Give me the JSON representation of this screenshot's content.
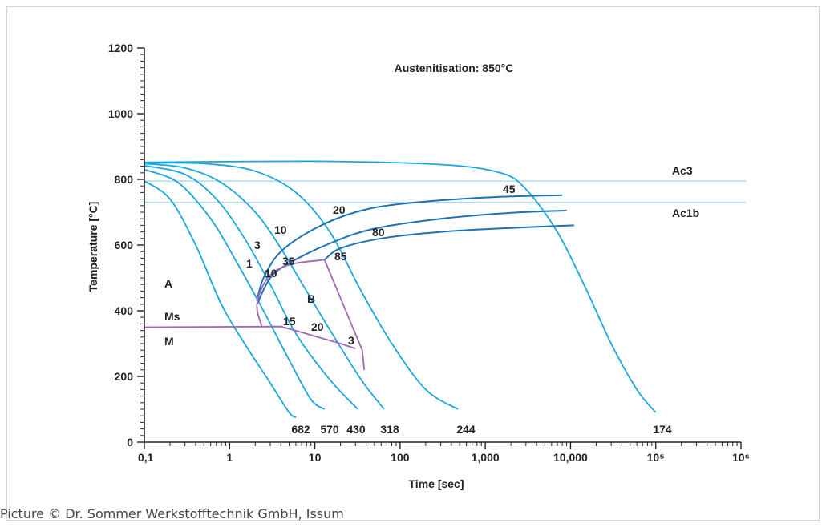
{
  "caption": "Picture © Dr. Sommer Werkstofftechnik GmbH, Issum",
  "chart_data": {
    "type": "line",
    "title": "Austenitisation: 850°C",
    "xlabel": "Time [sec]",
    "ylabel": "Temperature [°C]",
    "xscale": "log",
    "xlim": [
      0.1,
      1000000
    ],
    "ylim": [
      0,
      1200
    ],
    "x_tick_labels": [
      "0,1",
      "1",
      "10",
      "100",
      "1,000",
      "10,000",
      "10⁵",
      "10⁶"
    ],
    "x_tick_values": [
      0.1,
      1,
      10,
      100,
      1000,
      10000,
      100000,
      1000000
    ],
    "y_ticks": [
      0,
      200,
      400,
      600,
      800,
      1000,
      1200
    ],
    "colors": {
      "cooling": "#1aa7de",
      "transformation": "#1d72b3",
      "martensite": "#a565b5",
      "ac_lines": "#aad8ee",
      "axis": "#222222"
    },
    "reference_lines": [
      {
        "name": "Ac3",
        "y": 795
      },
      {
        "name": "Ac1b",
        "y": 730
      }
    ],
    "cooling_curves": [
      {
        "hardness": "682",
        "points": [
          [
            0.1,
            795
          ],
          [
            0.2,
            740
          ],
          [
            0.4,
            600
          ],
          [
            0.8,
            420
          ],
          [
            1.5,
            300
          ],
          [
            3,
            180
          ],
          [
            5,
            90
          ],
          [
            6,
            75
          ]
        ]
      },
      {
        "hardness": "570",
        "points": [
          [
            0.1,
            830
          ],
          [
            0.25,
            790
          ],
          [
            0.6,
            680
          ],
          [
            1.2,
            550
          ],
          [
            2.5,
            400
          ],
          [
            5,
            250
          ],
          [
            9,
            130
          ],
          [
            13,
            100
          ]
        ]
      },
      {
        "hardness": "430",
        "points": [
          [
            0.1,
            842
          ],
          [
            0.3,
            815
          ],
          [
            0.7,
            740
          ],
          [
            1.5,
            620
          ],
          [
            3,
            480
          ],
          [
            6,
            330
          ],
          [
            15,
            190
          ],
          [
            32,
            100
          ]
        ]
      },
      {
        "hardness": "318",
        "points": [
          [
            0.1,
            848
          ],
          [
            0.3,
            835
          ],
          [
            0.8,
            790
          ],
          [
            2,
            700
          ],
          [
            4,
            590
          ],
          [
            8,
            460
          ],
          [
            16,
            330
          ],
          [
            35,
            190
          ],
          [
            65,
            100
          ]
        ]
      },
      {
        "hardness": "244",
        "points": [
          [
            0.1,
            850
          ],
          [
            0.5,
            848
          ],
          [
            2,
            825
          ],
          [
            6,
            760
          ],
          [
            15,
            640
          ],
          [
            35,
            460
          ],
          [
            80,
            300
          ],
          [
            200,
            160
          ],
          [
            480,
            100
          ]
        ]
      },
      {
        "hardness": "174",
        "points": [
          [
            0.1,
            852
          ],
          [
            10,
            855
          ],
          [
            300,
            845
          ],
          [
            1500,
            820
          ],
          [
            3000,
            770
          ],
          [
            7000,
            640
          ],
          [
            15000,
            470
          ],
          [
            30000,
            300
          ],
          [
            60000,
            160
          ],
          [
            100000,
            90
          ]
        ]
      }
    ],
    "transformation_curves": [
      {
        "points": [
          [
            2.1,
            430
          ],
          [
            2.5,
            500
          ],
          [
            4,
            580
          ],
          [
            10,
            650
          ],
          [
            30,
            700
          ],
          [
            100,
            725
          ],
          [
            1000,
            745
          ],
          [
            8000,
            752
          ]
        ]
      },
      {
        "points": [
          [
            2.1,
            420
          ],
          [
            3,
            500
          ],
          [
            5,
            545
          ],
          [
            15,
            605
          ],
          [
            50,
            650
          ],
          [
            300,
            680
          ],
          [
            2000,
            698
          ],
          [
            9000,
            705
          ]
        ]
      },
      {
        "points": [
          [
            13,
            555
          ],
          [
            20,
            590
          ],
          [
            60,
            620
          ],
          [
            300,
            640
          ],
          [
            2000,
            652
          ],
          [
            11000,
            660
          ]
        ]
      }
    ],
    "martensite_lines": [
      {
        "points": [
          [
            0.1,
            350
          ],
          [
            4,
            352
          ],
          [
            8,
            330
          ],
          [
            20,
            300
          ],
          [
            30,
            285
          ]
        ]
      },
      {
        "points": [
          [
            2.4,
            350
          ],
          [
            2.1,
            420
          ],
          [
            2.8,
            500
          ],
          [
            5,
            540
          ],
          [
            13,
            555
          ]
        ]
      },
      {
        "points": [
          [
            13,
            555
          ],
          [
            36,
            280
          ],
          [
            38,
            220
          ]
        ]
      }
    ],
    "region_labels": [
      "A",
      "B",
      "Ms",
      "M"
    ],
    "annotations": [
      "1",
      "3",
      "10",
      "20",
      "45",
      "10",
      "35",
      "85",
      "80",
      "15",
      "20",
      "3"
    ],
    "bottom_labels": [
      "682",
      "570",
      "430",
      "318",
      "244",
      "174"
    ]
  }
}
